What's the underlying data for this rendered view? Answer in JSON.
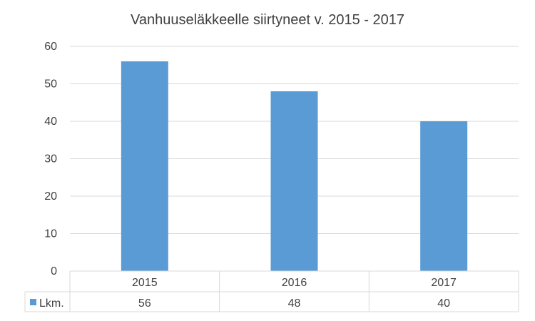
{
  "chart_data": {
    "type": "bar",
    "title": "Vanhuuseläkkeelle  siirtyneet v. 2015 - 2017",
    "categories": [
      "2015",
      "2016",
      "2017"
    ],
    "series": [
      {
        "name": "Lkm.",
        "values": [
          56,
          48,
          40
        ],
        "color": "#5b9bd5"
      }
    ],
    "ylim": [
      0,
      60
    ],
    "yticks": [
      0,
      10,
      20,
      30,
      40,
      50,
      60
    ],
    "grid": true,
    "legend": "data-table",
    "data_table": true
  }
}
